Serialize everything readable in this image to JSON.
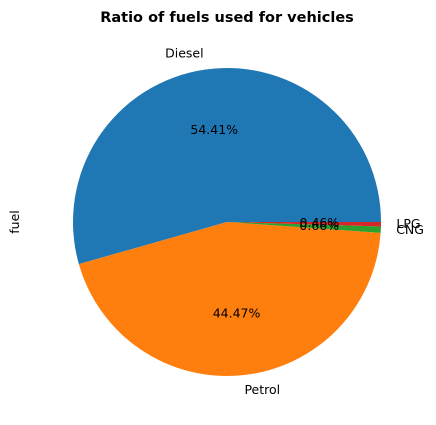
{
  "chart_data": {
    "type": "pie",
    "title": "Ratio of fuels used for vehicles",
    "ylabel": "fuel",
    "start_angle_deg": 0,
    "direction": "counterclockwise",
    "slices": [
      {
        "label": "Diesel",
        "value": 54.41,
        "pct_label": "54.41%",
        "color": "#1f77b4"
      },
      {
        "label": "Petrol",
        "value": 44.47,
        "pct_label": "44.47%",
        "color": "#ff7f0e"
      },
      {
        "label": "CNG",
        "value": 0.66,
        "pct_label": "0.66%",
        "color": "#2ca02c"
      },
      {
        "label": "LPG",
        "value": 0.46,
        "pct_label": "0.46%",
        "color": "#d62728"
      }
    ]
  }
}
